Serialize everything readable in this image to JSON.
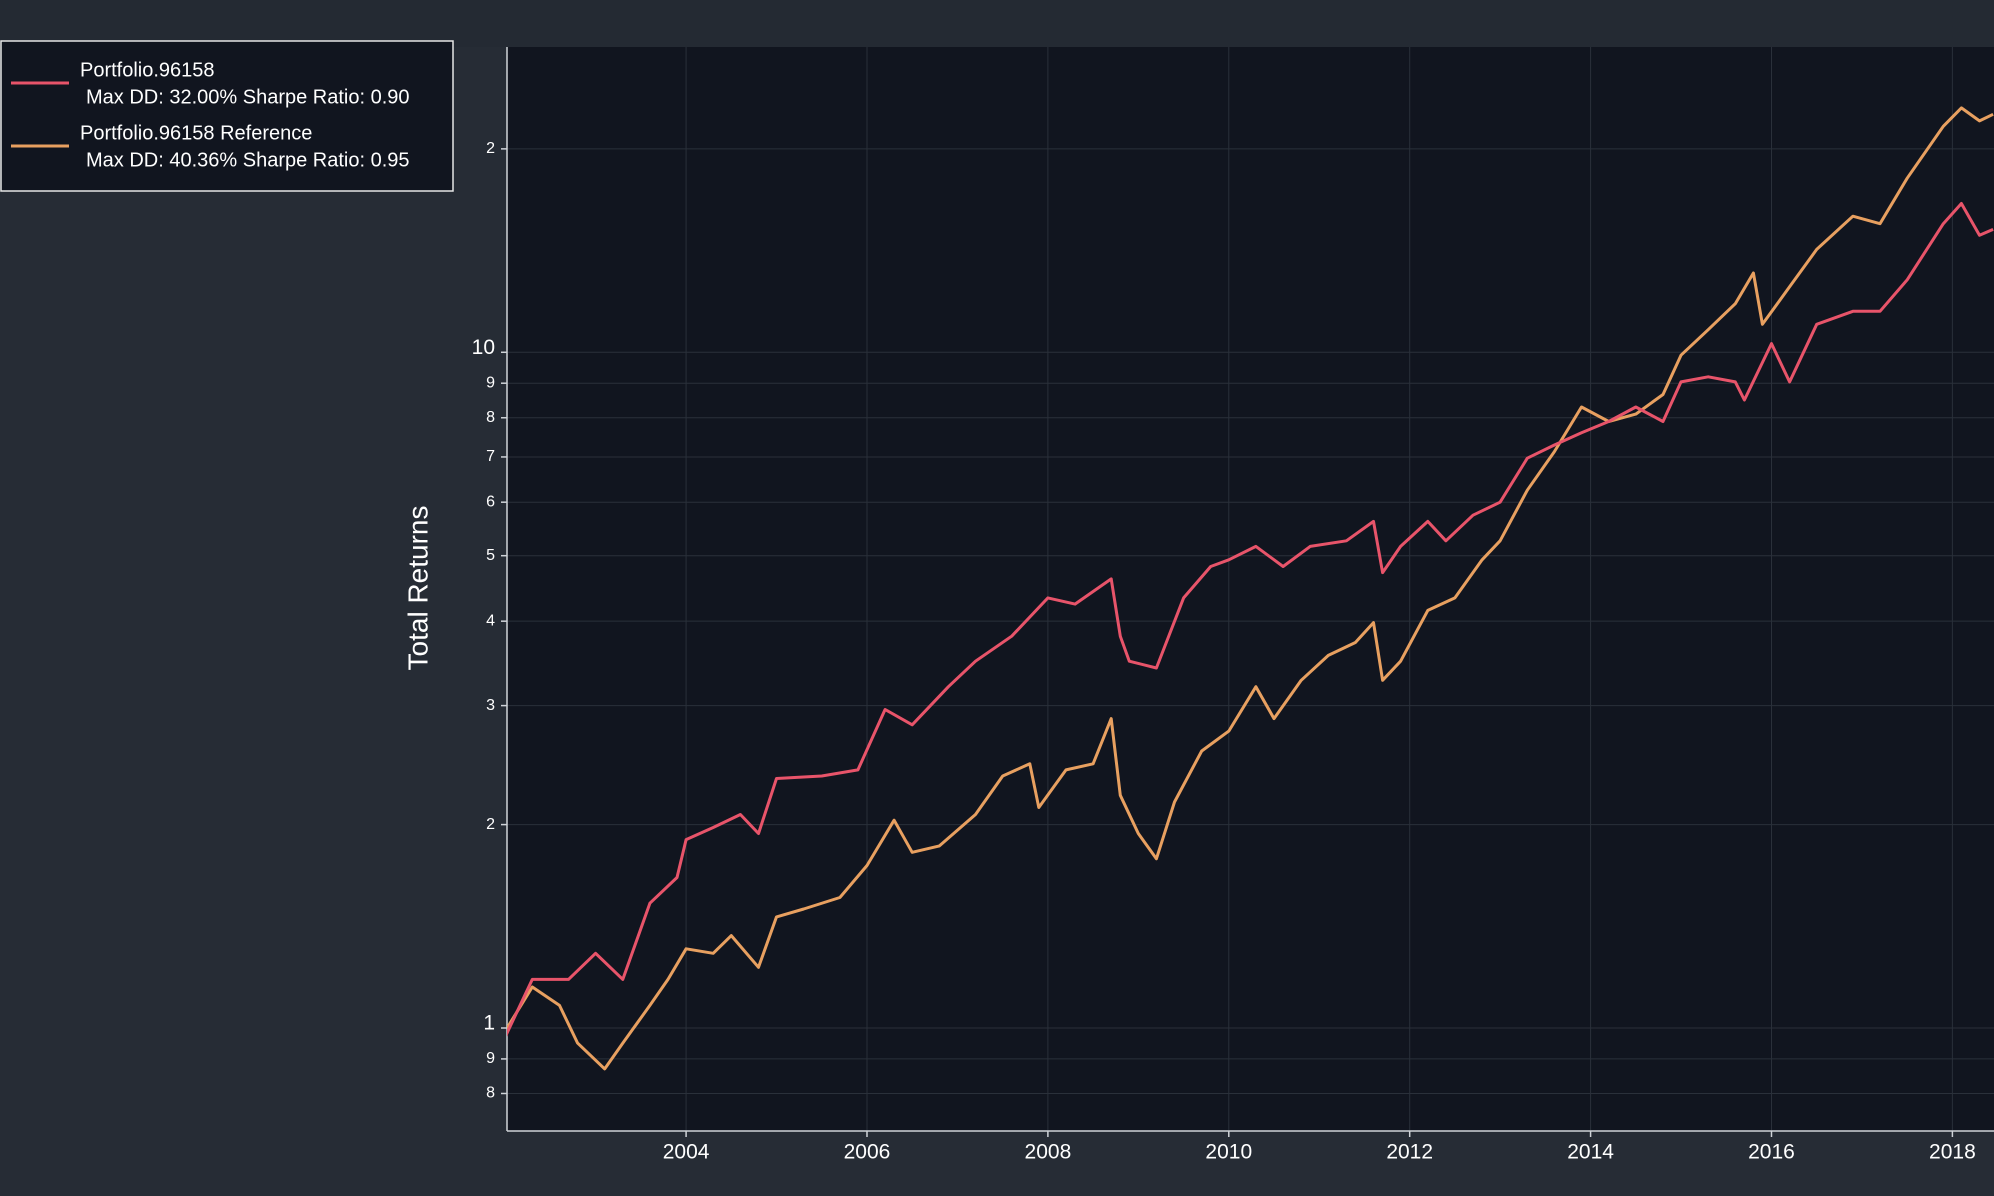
{
  "chart_data": {
    "type": "line",
    "y_label": "Total Returns",
    "log_y": true,
    "grid": true,
    "legend": "top-left",
    "xlim": [
      2002.02,
      2018.46
    ],
    "xticks": [
      2004,
      2006,
      2008,
      2010,
      2012,
      2014,
      2016,
      2018
    ],
    "ylim": [
      0.704,
      28.3
    ],
    "yticks": [
      {
        "value": 0.8,
        "label": "8"
      },
      {
        "value": 0.9,
        "label": "9"
      },
      1,
      2,
      3,
      4,
      5,
      6,
      7,
      8,
      9,
      10,
      {
        "value": 20,
        "label": "2"
      }
    ],
    "series": [
      {
        "name": "Portfolio.96158",
        "stats": "Max DD: 32.00% Sharpe Ratio: 0.90",
        "color": "#e8546a",
        "x": [
          2002.0,
          2002.3,
          2002.7,
          2003.0,
          2003.3,
          2003.6,
          2003.9,
          2004.0,
          2004.3,
          2004.6,
          2004.8,
          2005.0,
          2005.5,
          2005.9,
          2006.2,
          2006.5,
          2006.9,
          2007.2,
          2007.6,
          2008.0,
          2008.3,
          2008.7,
          2008.8,
          2008.9,
          2009.2,
          2009.5,
          2009.8,
          2010.0,
          2010.3,
          2010.6,
          2010.9,
          2011.3,
          2011.6,
          2011.7,
          2011.9,
          2012.2,
          2012.4,
          2012.7,
          2013.0,
          2013.3,
          2013.6,
          2013.9,
          2014.2,
          2014.5,
          2014.8,
          2015.0,
          2015.3,
          2015.6,
          2015.7,
          2016.0,
          2016.2,
          2016.5,
          2016.9,
          2017.2,
          2017.5,
          2017.9,
          2018.1,
          2018.3,
          2018.45
        ],
        "values": [
          0.97,
          1.18,
          1.18,
          1.29,
          1.18,
          1.53,
          1.67,
          1.9,
          1.98,
          2.07,
          1.94,
          2.34,
          2.36,
          2.41,
          2.96,
          2.81,
          3.2,
          3.49,
          3.8,
          4.33,
          4.24,
          4.62,
          3.8,
          3.49,
          3.41,
          4.33,
          4.82,
          4.93,
          5.16,
          4.82,
          5.16,
          5.26,
          5.62,
          4.72,
          5.16,
          5.62,
          5.26,
          5.74,
          6.0,
          6.97,
          7.29,
          7.6,
          7.9,
          8.3,
          7.9,
          9.04,
          9.2,
          9.04,
          8.5,
          10.3,
          9.04,
          11.0,
          11.5,
          11.5,
          12.8,
          15.5,
          16.6,
          14.9,
          15.2
        ]
      },
      {
        "name": "Portfolio.96158 Reference",
        "stats": "Max DD: 40.36% Sharpe Ratio: 0.95",
        "color": "#e8a060",
        "x": [
          2002.0,
          2002.3,
          2002.6,
          2002.8,
          2003.1,
          2003.3,
          2003.6,
          2003.8,
          2004.0,
          2004.3,
          2004.5,
          2004.8,
          2005.0,
          2005.3,
          2005.7,
          2006.0,
          2006.3,
          2006.5,
          2006.8,
          2007.2,
          2007.5,
          2007.8,
          2007.9,
          2008.2,
          2008.5,
          2008.7,
          2008.8,
          2009.0,
          2009.2,
          2009.4,
          2009.7,
          2010.0,
          2010.3,
          2010.5,
          2010.8,
          2011.1,
          2011.4,
          2011.6,
          2011.7,
          2011.9,
          2012.2,
          2012.5,
          2012.8,
          2013.0,
          2013.3,
          2013.6,
          2013.9,
          2014.2,
          2014.5,
          2014.8,
          2015.0,
          2015.3,
          2015.6,
          2015.8,
          2015.9,
          2016.2,
          2016.5,
          2016.9,
          2017.2,
          2017.5,
          2017.9,
          2018.1,
          2018.3,
          2018.45
        ],
        "values": [
          0.99,
          1.15,
          1.08,
          0.95,
          0.87,
          0.95,
          1.08,
          1.18,
          1.31,
          1.29,
          1.37,
          1.23,
          1.46,
          1.5,
          1.56,
          1.74,
          2.03,
          1.82,
          1.86,
          2.07,
          2.36,
          2.46,
          2.12,
          2.41,
          2.46,
          2.87,
          2.21,
          1.94,
          1.78,
          2.16,
          2.57,
          2.75,
          3.2,
          2.87,
          3.27,
          3.56,
          3.72,
          3.98,
          3.27,
          3.49,
          4.15,
          4.33,
          4.93,
          5.26,
          6.25,
          7.13,
          8.3,
          7.9,
          8.1,
          8.66,
          9.9,
          10.8,
          11.8,
          13.1,
          11.0,
          12.5,
          14.2,
          15.9,
          15.5,
          18.1,
          21.6,
          23.0,
          22.0,
          22.5
        ]
      }
    ]
  }
}
